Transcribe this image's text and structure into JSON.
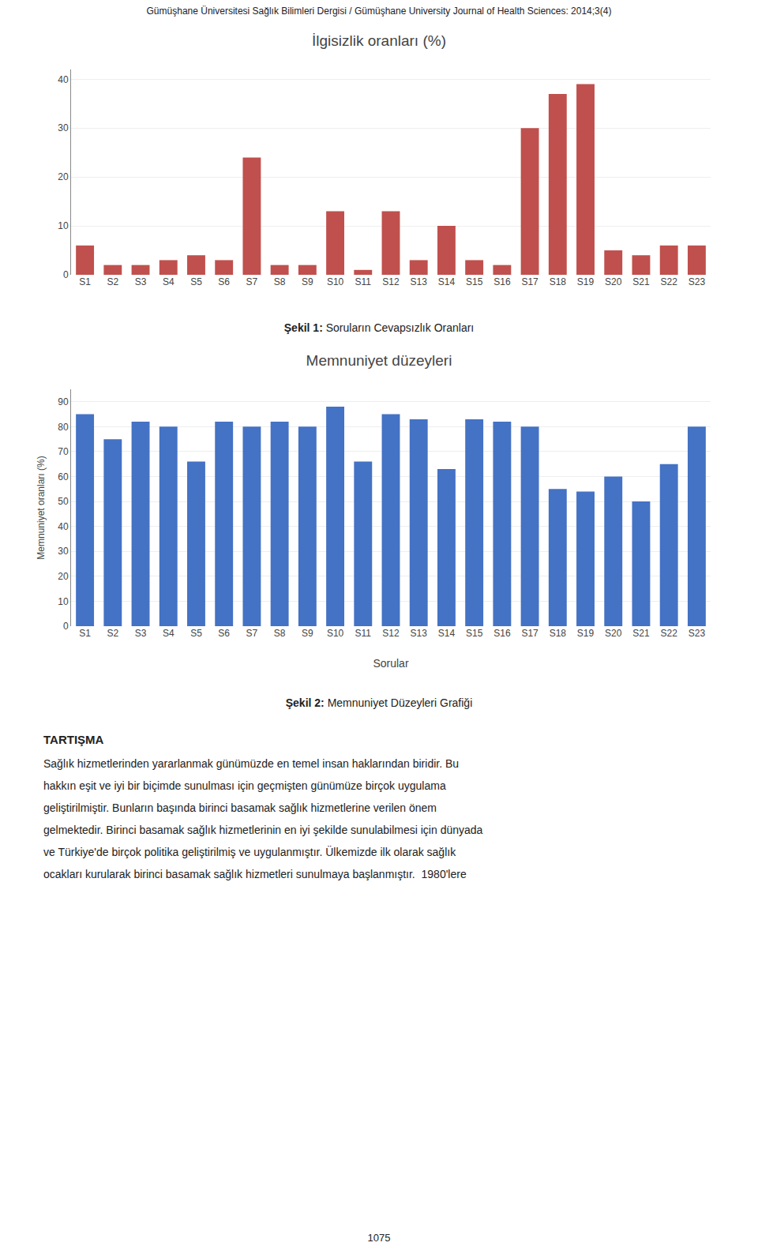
{
  "header": "Gümüşhane Üniversitesi Sağlık Bilimleri Dergisi / Gümüşhane University Journal of Health Sciences: 2014;3(4)",
  "chart_data": [
    {
      "type": "bar",
      "title": "İlgisizlik oranları (%)",
      "categories": [
        "S1",
        "S2",
        "S3",
        "S4",
        "S5",
        "S6",
        "S7",
        "S8",
        "S9",
        "S10",
        "S11",
        "S12",
        "S13",
        "S14",
        "S15",
        "S16",
        "S17",
        "S18",
        "S19",
        "S20",
        "S21",
        "S22",
        "S23"
      ],
      "values": [
        6,
        2,
        2,
        3,
        4,
        3,
        24,
        2,
        2,
        13,
        1,
        13,
        3,
        10,
        3,
        2,
        30,
        37,
        39,
        5,
        4,
        6,
        6
      ],
      "color": "#C0504D",
      "ylim": [
        0,
        42
      ],
      "yticks": [
        0,
        10,
        20,
        30,
        40
      ],
      "grid": true,
      "caption": [
        "Şekil 1:",
        "Soruların Cevapsızlık Oranları"
      ]
    },
    {
      "type": "bar",
      "title": "Memnuniyet düzeyleri",
      "categories": [
        "S1",
        "S2",
        "S3",
        "S4",
        "S5",
        "S6",
        "S7",
        "S8",
        "S9",
        "S10",
        "S11",
        "S12",
        "S13",
        "S14",
        "S15",
        "S16",
        "S17",
        "S18",
        "S19",
        "S20",
        "S21",
        "S22",
        "S23"
      ],
      "values": [
        85,
        75,
        82,
        80,
        66,
        82,
        80,
        82,
        80,
        88,
        66,
        85,
        83,
        63,
        83,
        82,
        80,
        55,
        54,
        60,
        50,
        65,
        80
      ],
      "color": "#4472C4",
      "ylim": [
        0,
        95
      ],
      "yticks": [
        0,
        10,
        20,
        30,
        40,
        50,
        60,
        70,
        80,
        90
      ],
      "grid": true,
      "xlabel": "Sorular",
      "ylabel": "Memnuniyet oranları (%)",
      "caption": [
        "Şekil 2:",
        "Memnuniyet Düzeyleri Grafiği"
      ]
    }
  ],
  "text": {
    "title": "TARTIŞMA",
    "lines": [
      "Sağlık hizmetlerinden yararlanmak günümüzde en temel insan haklarından biridir. Bu",
      "hakkın eşit ve iyi bir biçimde sunulması için geçmişten günümüze birçok uygulama",
      "geliştirilmiştir. Bunların başında birinci basamak sağlık hizmetlerine verilen önem",
      "gelmektedir. Birinci basamak sağlık hizmetlerinin en iyi şekilde sunulabilmesi için dünyada",
      "ve Türkiye'de birçok politika geliştirilmiş ve uygulanmıştır. Ülkemizde ilk olarak sağlık",
      "ocakları kurularak birinci basamak sağlık hizmetleri sunulmaya başlanmıştır.  1980'lere"
    ]
  },
  "footer": "1075"
}
